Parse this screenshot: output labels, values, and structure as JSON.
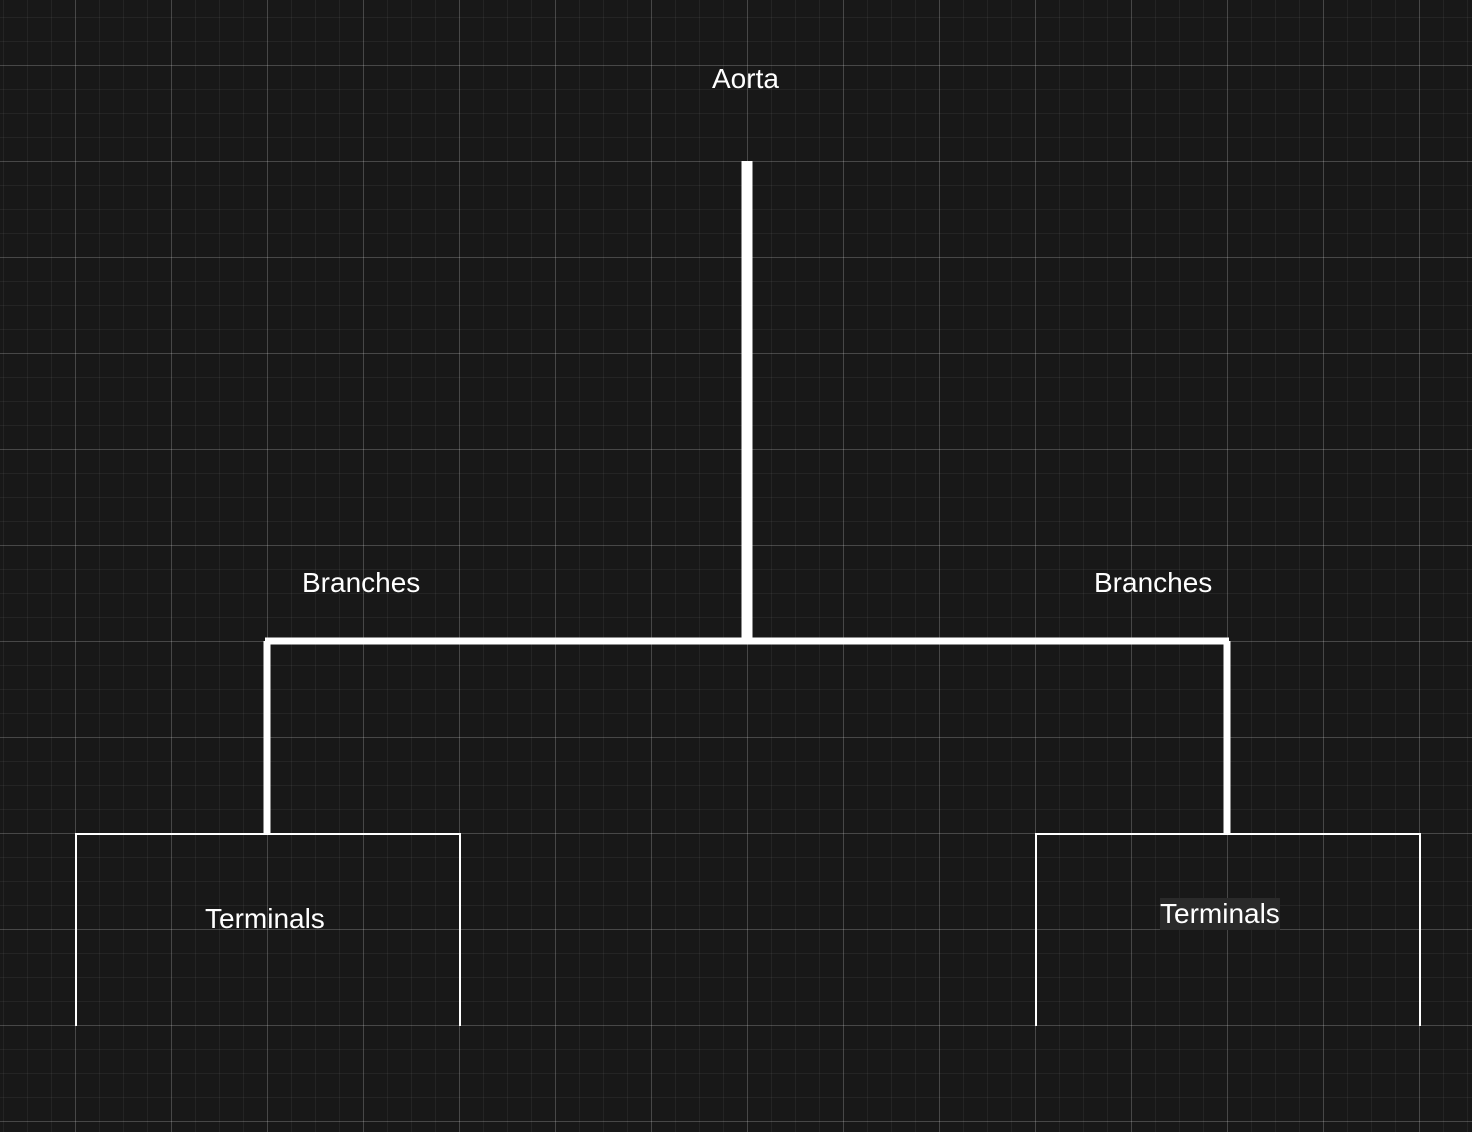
{
  "diagram": {
    "root": {
      "label": "Aorta"
    },
    "branches": [
      {
        "label": "Branches",
        "terminal": {
          "label": "Terminals"
        }
      },
      {
        "label": "Branches",
        "terminal": {
          "label": "Terminals"
        }
      }
    ]
  },
  "colors": {
    "background": "#181818",
    "line": "#ffffff",
    "text": "#ffffff"
  }
}
